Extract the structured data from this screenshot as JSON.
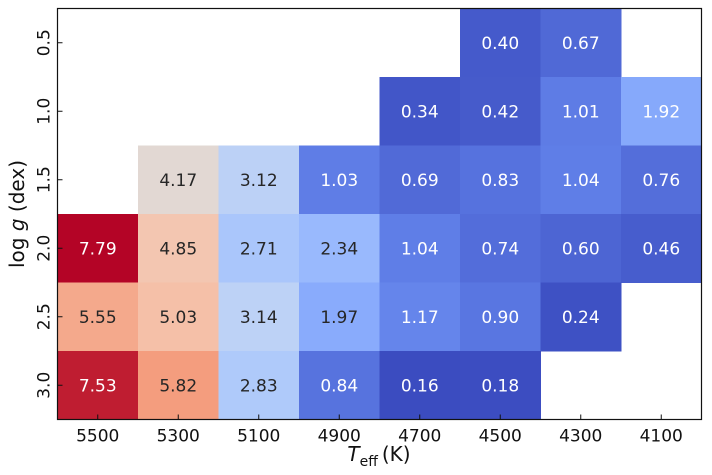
{
  "chart_data": {
    "type": "heatmap",
    "xlabel_main": "T",
    "xlabel_sub": "eff",
    "xlabel_unit": "(K)",
    "ylabel_main": "log ",
    "ylabel_var": "g",
    "ylabel_unit": " (dex)",
    "x_categories": [
      "5500",
      "5300",
      "5100",
      "4900",
      "4700",
      "4500",
      "4300",
      "4100"
    ],
    "y_categories": [
      "0.5",
      "1.0",
      "1.5",
      "2.0",
      "2.5",
      "3.0"
    ],
    "values": [
      [
        null,
        null,
        null,
        null,
        null,
        0.4,
        0.67,
        null
      ],
      [
        null,
        null,
        null,
        null,
        0.34,
        0.42,
        1.01,
        1.92
      ],
      [
        null,
        4.17,
        3.12,
        1.03,
        0.69,
        0.83,
        1.04,
        0.76
      ],
      [
        7.79,
        4.85,
        2.71,
        2.34,
        1.04,
        0.74,
        0.6,
        0.46
      ],
      [
        5.55,
        5.03,
        3.14,
        1.97,
        1.17,
        0.9,
        0.24,
        null
      ],
      [
        7.53,
        5.82,
        2.83,
        0.84,
        0.16,
        0.18,
        null,
        null
      ]
    ],
    "colormap": "coolwarm",
    "color_min": "#3b4cc0",
    "color_mid": "#dddddd",
    "color_max": "#b40426",
    "value_range": [
      0.16,
      7.79
    ],
    "colorbar": false,
    "grid": false
  }
}
